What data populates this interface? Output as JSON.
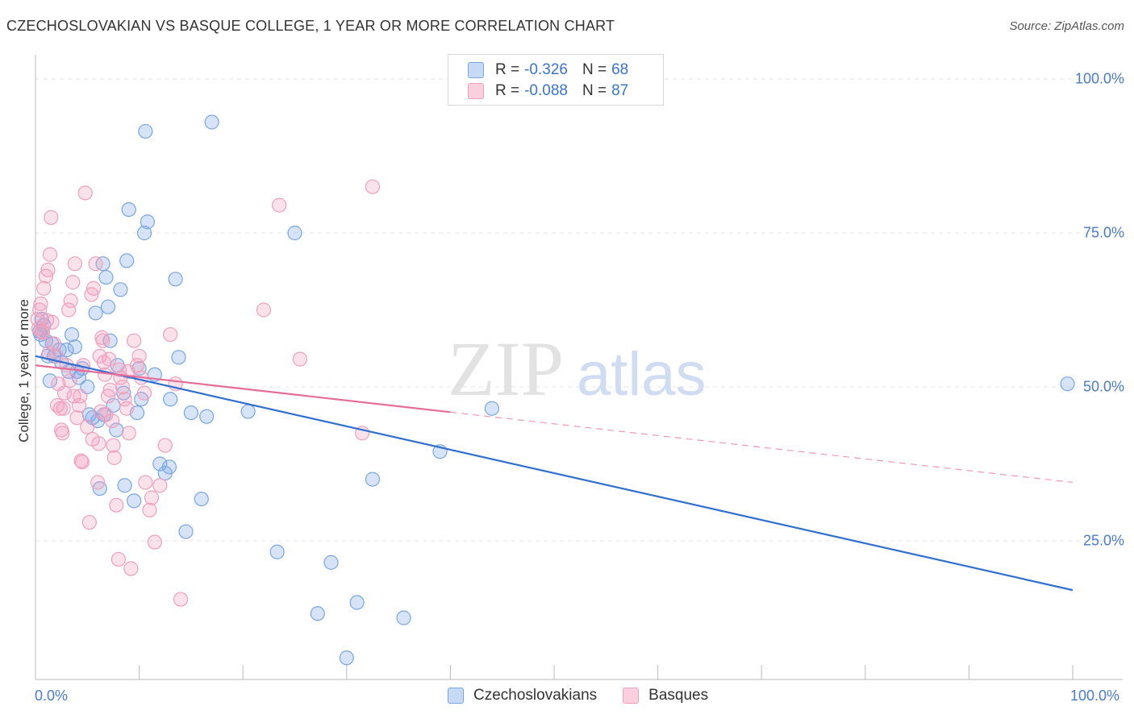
{
  "header": {
    "title": "CZECHOSLOVAKIAN VS BASQUE COLLEGE, 1 YEAR OR MORE CORRELATION CHART",
    "source": "Source: ZipAtlas.com"
  },
  "watermark": {
    "zip": "ZIP",
    "atlas": "atlas"
  },
  "legend": {
    "rows": [
      {
        "r_label": "R =",
        "r_value": "-0.326",
        "n_label": "N =",
        "n_value": "68",
        "color": "#7aa6e6"
      },
      {
        "r_label": "R =",
        "r_value": "-0.088",
        "n_label": "N =",
        "n_value": "87",
        "color": "#f0a0bc"
      }
    ]
  },
  "bottom_legend": {
    "series1": "Czechoslovakians",
    "series2": "Basques"
  },
  "chart_data": {
    "type": "scatter",
    "title": "CZECHOSLOVAKIAN VS BASQUE COLLEGE, 1 YEAR OR MORE CORRELATION CHART",
    "xlabel": "",
    "ylabel": "College, 1 year or more",
    "xlim": [
      0,
      100
    ],
    "ylim": [
      0,
      100
    ],
    "x_tick_labels": {
      "min": "0.0%",
      "max": "100.0%"
    },
    "y_tick_labels": [
      "100.0%",
      "75.0%",
      "50.0%",
      "25.0%"
    ],
    "y_ticks": [
      100,
      75,
      50,
      25
    ],
    "series": [
      {
        "name": "Czechoslovakians",
        "color": "#7aa6e6",
        "line_color": "#2f6fd1",
        "trend": {
          "x0": 0,
          "y0": 55.0,
          "x1": 100,
          "y1": 17.0,
          "dashed_from": null
        },
        "points": [
          [
            0.4,
            59.0
          ],
          [
            0.5,
            58.5
          ],
          [
            0.6,
            61.0
          ],
          [
            0.8,
            60.0
          ],
          [
            1.0,
            57.5
          ],
          [
            1.2,
            55.0
          ],
          [
            1.4,
            51.0
          ],
          [
            1.6,
            57.0
          ],
          [
            1.8,
            55.0
          ],
          [
            2.3,
            56.0
          ],
          [
            2.5,
            54.0
          ],
          [
            3.0,
            56.0
          ],
          [
            3.2,
            52.5
          ],
          [
            3.5,
            58.5
          ],
          [
            3.8,
            56.5
          ],
          [
            4.0,
            52.5
          ],
          [
            4.2,
            51.5
          ],
          [
            4.5,
            53.0
          ],
          [
            5.0,
            50.0
          ],
          [
            5.2,
            45.5
          ],
          [
            5.5,
            45.0
          ],
          [
            5.8,
            62.0
          ],
          [
            6.0,
            44.5
          ],
          [
            6.2,
            33.5
          ],
          [
            6.5,
            70.0
          ],
          [
            6.6,
            45.5
          ],
          [
            6.8,
            67.8
          ],
          [
            7.0,
            63.0
          ],
          [
            7.2,
            57.5
          ],
          [
            7.5,
            47.0
          ],
          [
            7.8,
            43.0
          ],
          [
            7.9,
            53.5
          ],
          [
            8.2,
            65.8
          ],
          [
            8.5,
            49.0
          ],
          [
            8.6,
            34.0
          ],
          [
            8.8,
            70.5
          ],
          [
            9.0,
            78.8
          ],
          [
            9.5,
            31.5
          ],
          [
            9.8,
            45.8
          ],
          [
            10.0,
            53.0
          ],
          [
            10.2,
            48.0
          ],
          [
            10.5,
            75.0
          ],
          [
            10.6,
            91.5
          ],
          [
            10.8,
            76.8
          ],
          [
            11.5,
            52.0
          ],
          [
            12.0,
            37.5
          ],
          [
            12.5,
            36.0
          ],
          [
            12.9,
            37.0
          ],
          [
            13.0,
            48.0
          ],
          [
            13.5,
            67.5
          ],
          [
            13.8,
            54.8
          ],
          [
            14.5,
            26.5
          ],
          [
            15.0,
            45.8
          ],
          [
            16.0,
            31.8
          ],
          [
            16.5,
            45.2
          ],
          [
            17.0,
            93.0
          ],
          [
            20.5,
            46.0
          ],
          [
            23.3,
            23.2
          ],
          [
            25.0,
            75.0
          ],
          [
            27.2,
            13.2
          ],
          [
            28.5,
            21.5
          ],
          [
            30.0,
            6.0
          ],
          [
            31.0,
            15.0
          ],
          [
            32.5,
            35.0
          ],
          [
            35.5,
            12.5
          ],
          [
            39.0,
            39.5
          ],
          [
            44.0,
            46.5
          ],
          [
            99.5,
            50.5
          ]
        ]
      },
      {
        "name": "Basques",
        "color": "#f0a0bc",
        "line_color": "#e76d99",
        "trend": {
          "x0": 0,
          "y0": 53.5,
          "x1": 100,
          "y1": 34.5,
          "dashed_from": 40
        },
        "points": [
          [
            0.2,
            61.0
          ],
          [
            0.3,
            59.5
          ],
          [
            0.4,
            62.5
          ],
          [
            0.5,
            63.5
          ],
          [
            0.6,
            59.0
          ],
          [
            0.8,
            66.0
          ],
          [
            1.0,
            68.0
          ],
          [
            1.2,
            69.0
          ],
          [
            1.4,
            71.5
          ],
          [
            1.5,
            77.5
          ],
          [
            1.6,
            60.5
          ],
          [
            1.8,
            57.0
          ],
          [
            2.0,
            55.0
          ],
          [
            2.2,
            50.5
          ],
          [
            2.4,
            46.5
          ],
          [
            2.5,
            43.0
          ],
          [
            2.6,
            42.5
          ],
          [
            2.8,
            49.0
          ],
          [
            3.0,
            53.5
          ],
          [
            3.2,
            62.5
          ],
          [
            3.4,
            64.0
          ],
          [
            3.6,
            67.0
          ],
          [
            3.8,
            70.0
          ],
          [
            4.0,
            45.0
          ],
          [
            4.2,
            47.0
          ],
          [
            4.4,
            38.0
          ],
          [
            4.5,
            37.8
          ],
          [
            4.6,
            53.5
          ],
          [
            4.8,
            81.5
          ],
          [
            5.0,
            43.5
          ],
          [
            5.2,
            28.0
          ],
          [
            5.4,
            65.0
          ],
          [
            5.6,
            66.0
          ],
          [
            5.8,
            70.0
          ],
          [
            6.0,
            34.5
          ],
          [
            6.2,
            55.0
          ],
          [
            6.4,
            58.0
          ],
          [
            6.5,
            57.5
          ],
          [
            6.6,
            54.0
          ],
          [
            6.8,
            45.5
          ],
          [
            7.0,
            48.5
          ],
          [
            7.2,
            49.5
          ],
          [
            7.4,
            44.5
          ],
          [
            7.5,
            40.5
          ],
          [
            7.6,
            38.5
          ],
          [
            7.8,
            30.8
          ],
          [
            8.0,
            22.0
          ],
          [
            8.2,
            51.5
          ],
          [
            8.4,
            50.0
          ],
          [
            8.6,
            48.0
          ],
          [
            8.8,
            46.5
          ],
          [
            9.0,
            42.5
          ],
          [
            9.2,
            20.5
          ],
          [
            9.5,
            57.5
          ],
          [
            10.0,
            55.0
          ],
          [
            10.2,
            51.5
          ],
          [
            10.5,
            49.0
          ],
          [
            10.6,
            34.5
          ],
          [
            11.0,
            30.0
          ],
          [
            11.2,
            32.0
          ],
          [
            11.5,
            24.8
          ],
          [
            12.0,
            34.0
          ],
          [
            12.5,
            40.5
          ],
          [
            13.0,
            58.5
          ],
          [
            13.5,
            50.5
          ],
          [
            14.0,
            15.5
          ],
          [
            22.0,
            62.5
          ],
          [
            23.5,
            79.5
          ],
          [
            25.5,
            54.5
          ],
          [
            31.5,
            42.5
          ],
          [
            32.5,
            82.5
          ],
          [
            0.7,
            58.8
          ],
          [
            1.1,
            60.8
          ],
          [
            1.3,
            55.5
          ],
          [
            2.1,
            47.0
          ],
          [
            2.7,
            46.5
          ],
          [
            3.3,
            51.0
          ],
          [
            3.7,
            48.5
          ],
          [
            4.3,
            48.5
          ],
          [
            5.5,
            41.5
          ],
          [
            6.1,
            40.8
          ],
          [
            6.3,
            46.0
          ],
          [
            6.7,
            52.0
          ],
          [
            7.1,
            54.5
          ],
          [
            8.1,
            52.8
          ],
          [
            8.9,
            52.5
          ],
          [
            9.8,
            53.5
          ]
        ]
      }
    ]
  }
}
